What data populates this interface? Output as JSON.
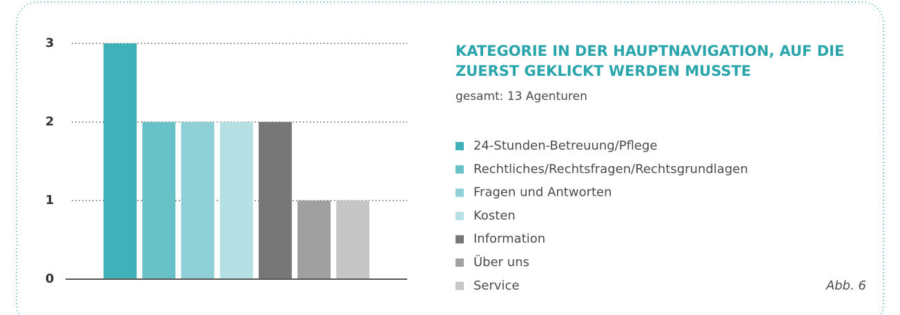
{
  "chart_data": {
    "type": "bar",
    "title": [
      "KATEGORIE IN DER HAUPTNAVIGATION, AUF DIE",
      "ZUERST GEKLICKT WERDEN MUSSTE"
    ],
    "subtitle": "gesamt: 13 Agenturen",
    "categories": [
      "24-Stunden-Betreuung/Pflege",
      "Rechtliches/Rechtsfragen/Rechtsgrundlagen",
      "Fragen und Antworten",
      "Kosten",
      "Information",
      "Über uns",
      "Service"
    ],
    "values": [
      3,
      2,
      2,
      2,
      2,
      1,
      1
    ],
    "colors": [
      "#3fb1b8",
      "#68c1c6",
      "#8ed0d5",
      "#b5e0e3",
      "#777777",
      "#a0a0a1",
      "#c6c6c6"
    ],
    "ylim": [
      0,
      3
    ],
    "yticks": [
      0,
      1,
      2,
      3
    ],
    "grid": true,
    "annotation": "Abb. 6"
  }
}
